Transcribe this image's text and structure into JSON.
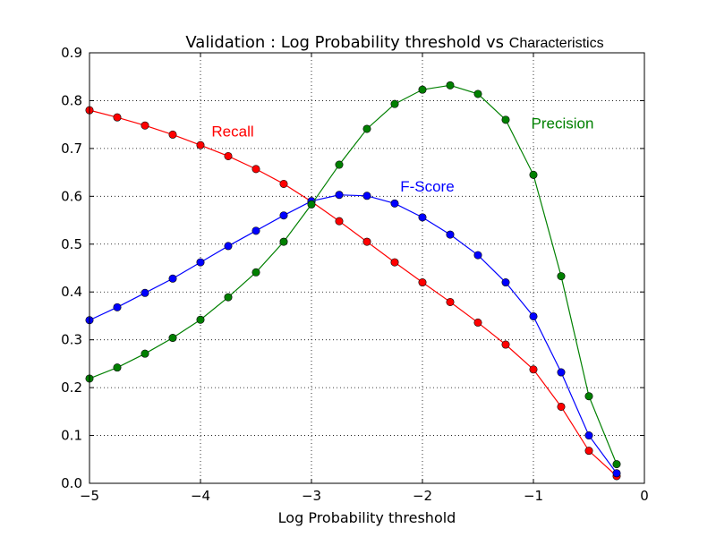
{
  "chart_data": {
    "type": "line",
    "title_main": "Validation : Log Probability threshold vs ",
    "title_tail": "Characteristics",
    "xlabel": "Log Probability threshold",
    "ylabel": "",
    "xlim": [
      -5,
      0
    ],
    "ylim": [
      0,
      0.9
    ],
    "xticks": [
      -5,
      -4,
      -3,
      -2,
      -1,
      0
    ],
    "xtick_labels": [
      "−5",
      "−4",
      "−3",
      "−2",
      "−1",
      "0"
    ],
    "yticks": [
      0,
      0.1,
      0.2,
      0.3,
      0.4,
      0.5,
      0.6,
      0.7,
      0.8,
      0.9
    ],
    "ytick_labels": [
      "0.0",
      "0.1",
      "0.2",
      "0.3",
      "0.4",
      "0.5",
      "0.6",
      "0.7",
      "0.8",
      "0.9"
    ],
    "grid": true,
    "x": [
      -5,
      -4.75,
      -4.5,
      -4.25,
      -4,
      -3.75,
      -3.5,
      -3.25,
      -3,
      -2.75,
      -2.5,
      -2.25,
      -2,
      -1.75,
      -1.5,
      -1.25,
      -1,
      -0.75,
      -0.5,
      -0.25
    ],
    "series": [
      {
        "name": "Recall",
        "color": "#ff0000",
        "values": [
          0.78,
          0.765,
          0.748,
          0.729,
          0.707,
          0.684,
          0.657,
          0.626,
          0.589,
          0.548,
          0.505,
          0.462,
          0.42,
          0.379,
          0.336,
          0.29,
          0.238,
          0.16,
          0.068,
          0.015
        ]
      },
      {
        "name": "F-Score",
        "color": "#0000ff",
        "values": [
          0.341,
          0.368,
          0.398,
          0.428,
          0.462,
          0.496,
          0.528,
          0.56,
          0.59,
          0.603,
          0.601,
          0.585,
          0.556,
          0.52,
          0.477,
          0.42,
          0.349,
          0.232,
          0.1,
          0.021
        ]
      },
      {
        "name": "Precision",
        "color": "#008000",
        "values": [
          0.219,
          0.242,
          0.271,
          0.304,
          0.342,
          0.389,
          0.441,
          0.505,
          0.583,
          0.666,
          0.741,
          0.793,
          0.823,
          0.832,
          0.814,
          0.76,
          0.645,
          0.433,
          0.182,
          0.04
        ]
      }
    ],
    "annotations": [
      {
        "text": "Recall",
        "x": -3.9,
        "y": 0.725,
        "color": "#ff0000"
      },
      {
        "text": "F-Score",
        "x": -2.2,
        "y": 0.61,
        "color": "#0000ff"
      },
      {
        "text": "Precision",
        "x": -1.02,
        "y": 0.742,
        "color": "#008000"
      }
    ]
  }
}
